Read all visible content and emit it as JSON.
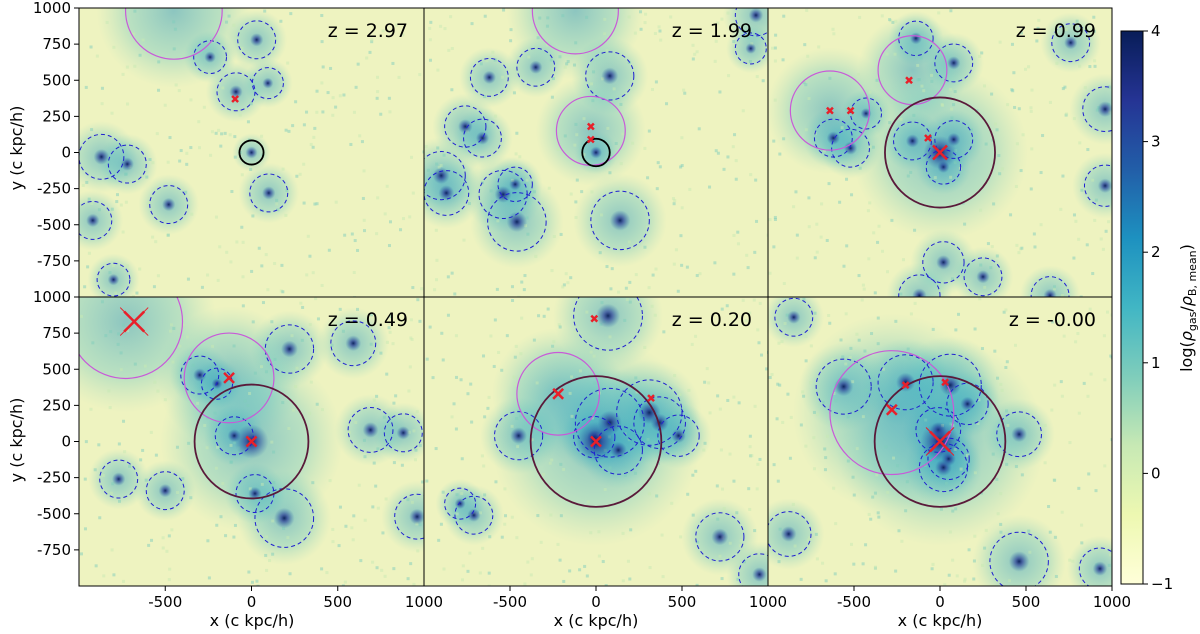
{
  "colors": {
    "colormap": [
      "#ffffd9",
      "#edf8b1",
      "#c7e9b4",
      "#7fcdbb",
      "#41b6c4",
      "#1d91c0",
      "#225ea8",
      "#253494",
      "#081d58"
    ],
    "satellite_circle": "#1f1fd0",
    "main_circle": "#5a1a3a",
    "progenitor_circle": "#c85ad8",
    "marker": "#e8202a"
  },
  "chart_data": {
    "type": "heatmap",
    "xlabel": "x   (c kpc/h)",
    "ylabel": "y   (c kpc/h)",
    "xlim": [
      -1000,
      1000
    ],
    "ylim": [
      -1000,
      1000
    ],
    "colorbar": {
      "label": "log(ρgas/ρB, mean)",
      "range": [
        -1,
        4
      ],
      "ticks": [
        "4",
        "3",
        "2",
        "1",
        "0",
        "−1"
      ]
    },
    "x_ticks": [
      "-500",
      "0",
      "500",
      "1000"
    ],
    "x_ticks_left": [
      "-500",
      "0",
      "500"
    ],
    "y_ticks": [
      "1000",
      "750",
      "500",
      "250",
      "0",
      "-250",
      "-500",
      "-750"
    ],
    "y_ticks_bottom": [
      "750",
      "500",
      "250",
      "0",
      "-250",
      "-500",
      "-750"
    ],
    "panels": [
      {
        "z_label": "z = 2.97",
        "main_halo": {
          "x": 0,
          "y": 0,
          "r": 70,
          "color": "black"
        },
        "progenitors": [
          {
            "x": -450,
            "y": 980,
            "r": 280
          }
        ],
        "markers": [
          {
            "x": -95,
            "y": 370,
            "size": "small"
          }
        ],
        "satellites": [
          {
            "x": -240,
            "y": 660,
            "r": 95
          },
          {
            "x": 30,
            "y": 780,
            "r": 110
          },
          {
            "x": 95,
            "y": 480,
            "r": 90
          },
          {
            "x": -90,
            "y": 420,
            "r": 110
          },
          {
            "x": -870,
            "y": -30,
            "r": 130
          },
          {
            "x": -720,
            "y": -80,
            "r": 110
          },
          {
            "x": -480,
            "y": -360,
            "r": 110
          },
          {
            "x": -920,
            "y": -470,
            "r": 110
          },
          {
            "x": 100,
            "y": -280,
            "r": 110
          },
          {
            "x": -800,
            "y": -880,
            "r": 95
          }
        ]
      },
      {
        "z_label": "z = 1.99",
        "main_halo": {
          "x": 0,
          "y": 0,
          "r": 80,
          "color": "black"
        },
        "progenitors": [
          {
            "x": -120,
            "y": 980,
            "r": 250
          },
          {
            "x": -30,
            "y": 150,
            "r": 200
          }
        ],
        "markers": [
          {
            "x": -30,
            "y": 180,
            "size": "small"
          },
          {
            "x": -30,
            "y": 90,
            "size": "small"
          }
        ],
        "satellites": [
          {
            "x": -620,
            "y": 520,
            "r": 110
          },
          {
            "x": -350,
            "y": 590,
            "r": 110
          },
          {
            "x": 80,
            "y": 530,
            "r": 140
          },
          {
            "x": 930,
            "y": 950,
            "r": 120
          },
          {
            "x": 900,
            "y": 720,
            "r": 90
          },
          {
            "x": -760,
            "y": 180,
            "r": 120
          },
          {
            "x": -660,
            "y": 100,
            "r": 110
          },
          {
            "x": -900,
            "y": -160,
            "r": 140
          },
          {
            "x": -540,
            "y": -290,
            "r": 140
          },
          {
            "x": -870,
            "y": -280,
            "r": 130
          },
          {
            "x": -460,
            "y": -480,
            "r": 170
          },
          {
            "x": 140,
            "y": -470,
            "r": 170
          },
          {
            "x": -470,
            "y": -220,
            "r": 100
          }
        ]
      },
      {
        "z_label": "z = 0.99",
        "main_halo": {
          "x": 0,
          "y": 0,
          "r": 320,
          "color": "main"
        },
        "progenitors": [
          {
            "x": -640,
            "y": 290,
            "r": 230
          },
          {
            "x": -160,
            "y": 570,
            "r": 200
          }
        ],
        "markers": [
          {
            "x": -640,
            "y": 290,
            "size": "small"
          },
          {
            "x": -520,
            "y": 290,
            "size": "small"
          },
          {
            "x": -180,
            "y": 500,
            "size": "small"
          },
          {
            "x": -70,
            "y": 100,
            "size": "small"
          },
          {
            "x": 0,
            "y": 0,
            "size": "large"
          }
        ],
        "satellites": [
          {
            "x": -140,
            "y": 790,
            "r": 100
          },
          {
            "x": 80,
            "y": 620,
            "r": 110
          },
          {
            "x": 760,
            "y": 760,
            "r": 110
          },
          {
            "x": 960,
            "y": 300,
            "r": 130
          },
          {
            "x": -620,
            "y": 100,
            "r": 110
          },
          {
            "x": -430,
            "y": 270,
            "r": 90
          },
          {
            "x": -520,
            "y": 30,
            "r": 110
          },
          {
            "x": -160,
            "y": 80,
            "r": 110
          },
          {
            "x": 80,
            "y": 90,
            "r": 110
          },
          {
            "x": 20,
            "y": -100,
            "r": 100
          },
          {
            "x": 960,
            "y": -230,
            "r": 120
          },
          {
            "x": 20,
            "y": -760,
            "r": 120
          },
          {
            "x": 250,
            "y": -860,
            "r": 110
          },
          {
            "x": -120,
            "y": -990,
            "r": 120
          },
          {
            "x": 640,
            "y": -990,
            "r": 110
          }
        ]
      },
      {
        "z_label": "z = 0.49",
        "main_halo": {
          "x": 0,
          "y": 0,
          "r": 330,
          "color": "main"
        },
        "progenitors": [
          {
            "x": -730,
            "y": 830,
            "r": 330
          },
          {
            "x": -130,
            "y": 440,
            "r": 260
          }
        ],
        "markers": [
          {
            "x": -680,
            "y": 830,
            "size": "xlarge"
          },
          {
            "x": -130,
            "y": 440,
            "size": "medium"
          },
          {
            "x": 0,
            "y": 0,
            "size": "medium"
          }
        ],
        "satellites": [
          {
            "x": -300,
            "y": 460,
            "r": 110
          },
          {
            "x": -200,
            "y": 400,
            "r": 90
          },
          {
            "x": 220,
            "y": 640,
            "r": 140
          },
          {
            "x": 590,
            "y": 680,
            "r": 130
          },
          {
            "x": -100,
            "y": 40,
            "r": 110
          },
          {
            "x": 20,
            "y": -360,
            "r": 110
          },
          {
            "x": 690,
            "y": 80,
            "r": 130
          },
          {
            "x": 880,
            "y": 60,
            "r": 110
          },
          {
            "x": -770,
            "y": -260,
            "r": 110
          },
          {
            "x": -500,
            "y": -340,
            "r": 110
          },
          {
            "x": 190,
            "y": -530,
            "r": 170
          },
          {
            "x": 960,
            "y": -520,
            "r": 130
          }
        ]
      },
      {
        "z_label": "z = 0.20",
        "main_halo": {
          "x": 0,
          "y": 0,
          "r": 380,
          "color": "main"
        },
        "progenitors": [
          {
            "x": -220,
            "y": 330,
            "r": 240
          }
        ],
        "markers": [
          {
            "x": -10,
            "y": 850,
            "size": "small"
          },
          {
            "x": -220,
            "y": 330,
            "size": "medium"
          },
          {
            "x": 320,
            "y": 300,
            "size": "small"
          },
          {
            "x": 0,
            "y": 0,
            "size": "medium"
          }
        ],
        "satellites": [
          {
            "x": 70,
            "y": 870,
            "r": 200
          },
          {
            "x": 80,
            "y": 130,
            "r": 200
          },
          {
            "x": 310,
            "y": 200,
            "r": 190
          },
          {
            "x": 370,
            "y": 130,
            "r": 150
          },
          {
            "x": 480,
            "y": 40,
            "r": 120
          },
          {
            "x": -450,
            "y": 40,
            "r": 140
          },
          {
            "x": -10,
            "y": 30,
            "r": 120
          },
          {
            "x": 130,
            "y": -60,
            "r": 140
          },
          {
            "x": -790,
            "y": -430,
            "r": 90
          },
          {
            "x": -710,
            "y": -510,
            "r": 110
          },
          {
            "x": 720,
            "y": -660,
            "r": 140
          },
          {
            "x": 950,
            "y": -920,
            "r": 120
          }
        ]
      },
      {
        "z_label": "z = -0.00",
        "main_halo": {
          "x": 0,
          "y": 0,
          "r": 380,
          "color": "main"
        },
        "progenitors": [
          {
            "x": -280,
            "y": 200,
            "r": 360
          }
        ],
        "markers": [
          {
            "x": -200,
            "y": 390,
            "size": "small"
          },
          {
            "x": 30,
            "y": 410,
            "size": "small"
          },
          {
            "x": -280,
            "y": 220,
            "size": "medium"
          },
          {
            "x": 0,
            "y": 0,
            "size": "xlarge"
          }
        ],
        "satellites": [
          {
            "x": -200,
            "y": 410,
            "r": 160
          },
          {
            "x": 60,
            "y": 390,
            "r": 180
          },
          {
            "x": -560,
            "y": 380,
            "r": 160
          },
          {
            "x": -850,
            "y": 860,
            "r": 110
          },
          {
            "x": 160,
            "y": 260,
            "r": 120
          },
          {
            "x": 460,
            "y": 50,
            "r": 130
          },
          {
            "x": -10,
            "y": 80,
            "r": 130
          },
          {
            "x": 20,
            "y": -180,
            "r": 140
          },
          {
            "x": 50,
            "y": -120,
            "r": 120
          },
          {
            "x": -880,
            "y": -640,
            "r": 130
          },
          {
            "x": 460,
            "y": -830,
            "r": 170
          },
          {
            "x": 930,
            "y": -880,
            "r": 120
          }
        ]
      }
    ]
  }
}
